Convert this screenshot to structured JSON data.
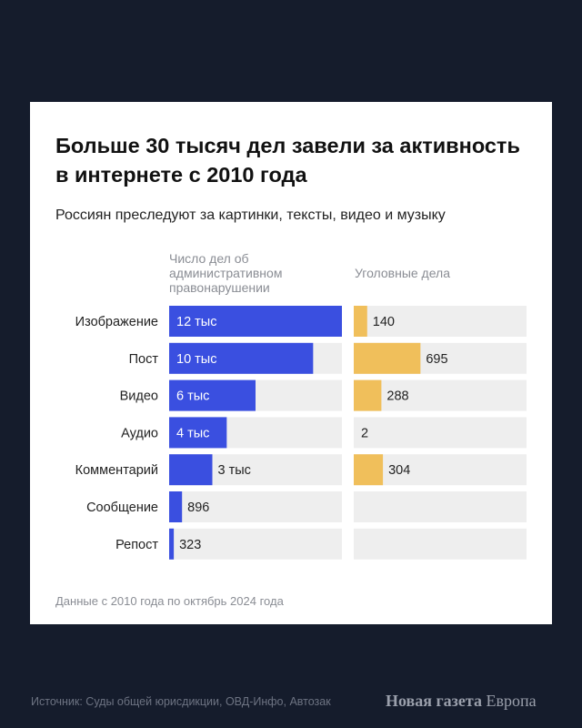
{
  "header": {
    "title": "Больше 30 тысяч дел завели за активность в интернете с 2010 года",
    "subtitle": "Россиян преследуют за картинки, тексты, видео и музыку"
  },
  "columns": {
    "admin": "Число дел об административном правонарушении",
    "criminal": "Уголовные дела"
  },
  "footer": {
    "note": "Данные с 2010 года по октябрь 2024 года",
    "source": "Источник: Суды общей юрисдикции, ОВД-Инфо, Автозак",
    "brand_bold": "Новая газета",
    "brand_light": "Европа"
  },
  "colors": {
    "admin": "#3a4fe0",
    "criminal": "#f0bf5b",
    "track": "#eeeeee",
    "background": "#151c2c"
  },
  "chart_data": {
    "type": "bar",
    "orientation": "horizontal",
    "categories": [
      "Изображение",
      "Пост",
      "Видео",
      "Аудио",
      "Комментарий",
      "Сообщение",
      "Репост"
    ],
    "series": [
      {
        "name": "Число дел об административном правонарушении",
        "values": [
          12000,
          10000,
          6000,
          4000,
          3000,
          896,
          323
        ],
        "labels": [
          "12 тыс",
          "10 тыс",
          "6 тыс",
          "4 тыс",
          "3 тыс",
          "896",
          "323"
        ]
      },
      {
        "name": "Уголовные дела",
        "values": [
          140,
          695,
          288,
          2,
          304,
          null,
          null
        ],
        "labels": [
          "140",
          "695",
          "288",
          "2",
          "304",
          "",
          ""
        ]
      }
    ]
  }
}
